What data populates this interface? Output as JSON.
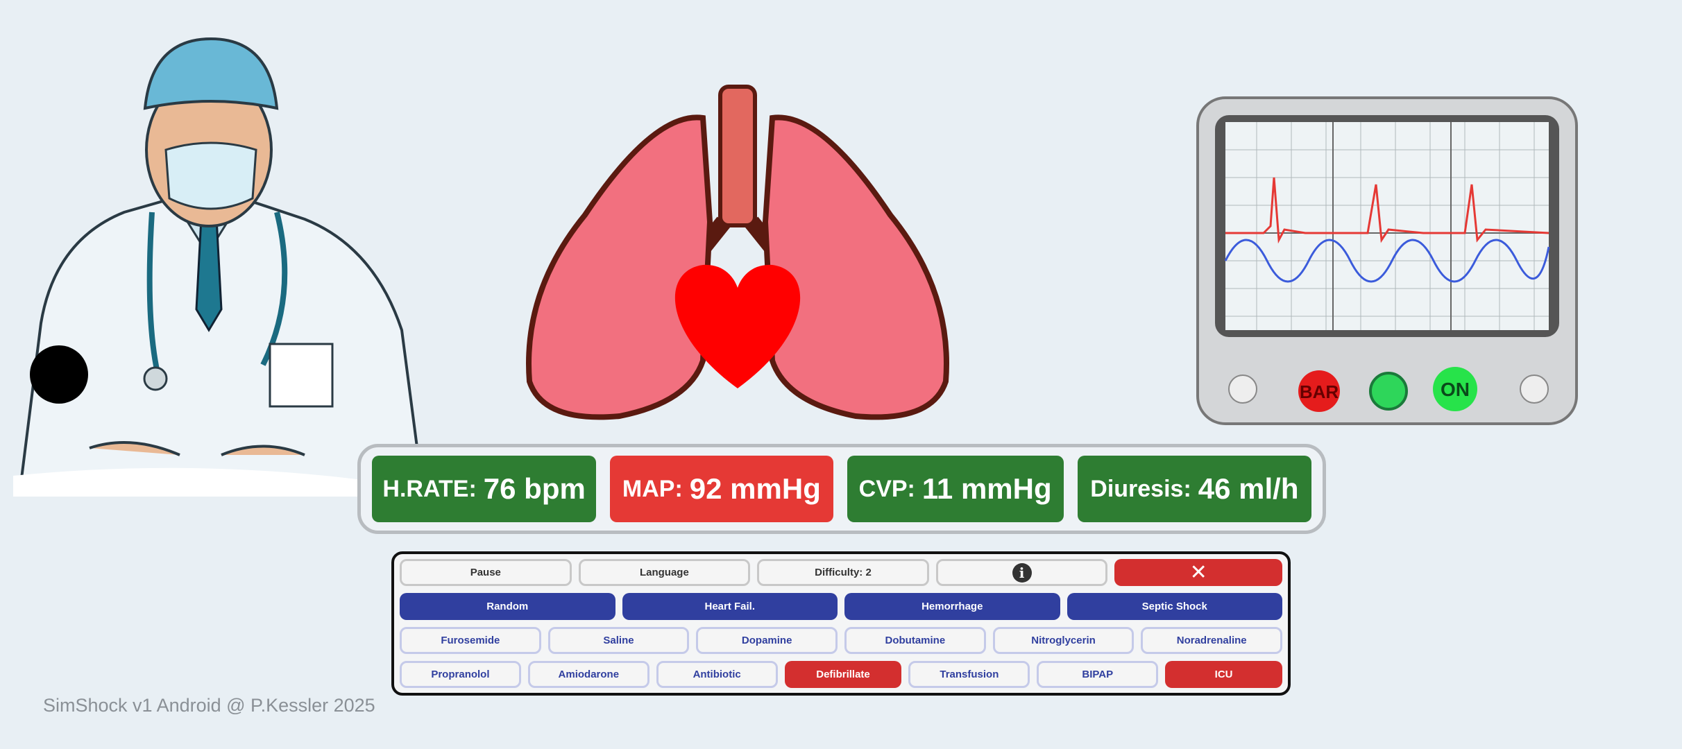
{
  "vitals": [
    {
      "label": "H.RATE:",
      "value": "76 bpm",
      "color": "#2e7d32"
    },
    {
      "label": "MAP:",
      "value": "92 mmHg",
      "color": "#e53935"
    },
    {
      "label": "CVP:",
      "value": "11 mmHg",
      "color": "#2e7d32"
    },
    {
      "label": "Diuresis:",
      "value": "46 ml/h",
      "color": "#2e7d32"
    }
  ],
  "controls": {
    "pause": "Pause",
    "language": "Language",
    "difficulty": "Difficulty: 2",
    "info_icon": "info-icon",
    "close_icon": "close-icon"
  },
  "scenarios": [
    "Random",
    "Heart Fail.",
    "Hemorrhage",
    "Septic Shock"
  ],
  "drugs": [
    "Furosemide",
    "Saline",
    "Dopamine",
    "Dobutamine",
    "Nitroglycerin",
    "Noradrenaline"
  ],
  "treatments": [
    "Propranolol",
    "Amiodarone",
    "Antibiotic",
    "Defibrillate",
    "Transfusion",
    "BIPAP",
    "ICU"
  ],
  "monitor": {
    "left_button": "BAR",
    "right_button": "ON"
  },
  "footer": "SimShock v1 Android @ P.Kessler 2025",
  "colors": {
    "background": "#e8eff4",
    "scenario": "#303f9f",
    "danger": "#d32f2f",
    "ok": "#2e7d32"
  }
}
